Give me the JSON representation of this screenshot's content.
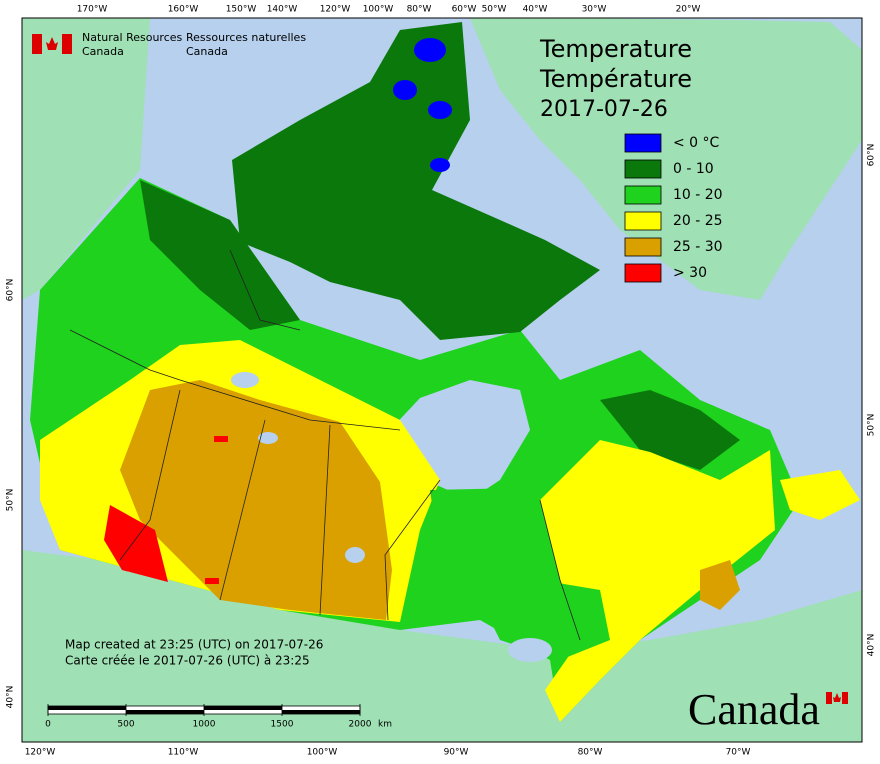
{
  "header": {
    "agency_en": [
      "Natural Resources",
      "Canada"
    ],
    "agency_fr": [
      "Ressources naturelles",
      "Canada"
    ]
  },
  "title": {
    "en": "Temperature",
    "fr": "Température",
    "date": "2017-07-26"
  },
  "legend": [
    {
      "label": "< 0 °C",
      "color": "#0000ff"
    },
    {
      "label": "0 - 10",
      "color": "#0a780a"
    },
    {
      "label": "10 - 20",
      "color": "#1ed21e"
    },
    {
      "label": "20 - 25",
      "color": "#ffff00"
    },
    {
      "label": "25 - 30",
      "color": "#d9a000"
    },
    {
      "label": "> 30",
      "color": "#ff0000"
    }
  ],
  "credits": [
    "Map created at 23:25 (UTC) on 2017-07-26",
    "Carte créée le 2017-07-26 (UTC) à 23:25"
  ],
  "scale": {
    "ticks": [
      0,
      500,
      1000,
      1500,
      2000
    ],
    "unit": "km"
  },
  "graticule": {
    "top": [
      "170°W",
      "160°W",
      "150°W",
      "140°W",
      "120°W",
      "100°W",
      "80°W",
      "60°W",
      "50°W",
      "40°W",
      "30°W",
      "20°W"
    ],
    "bottom": [
      "120°W",
      "110°W",
      "100°W",
      "90°W",
      "80°W",
      "70°W"
    ],
    "left": [
      "60°N",
      "50°N",
      "40°N"
    ],
    "right": [
      "60°N",
      "50°N",
      "40°N"
    ]
  },
  "wordmark": "Canada"
}
